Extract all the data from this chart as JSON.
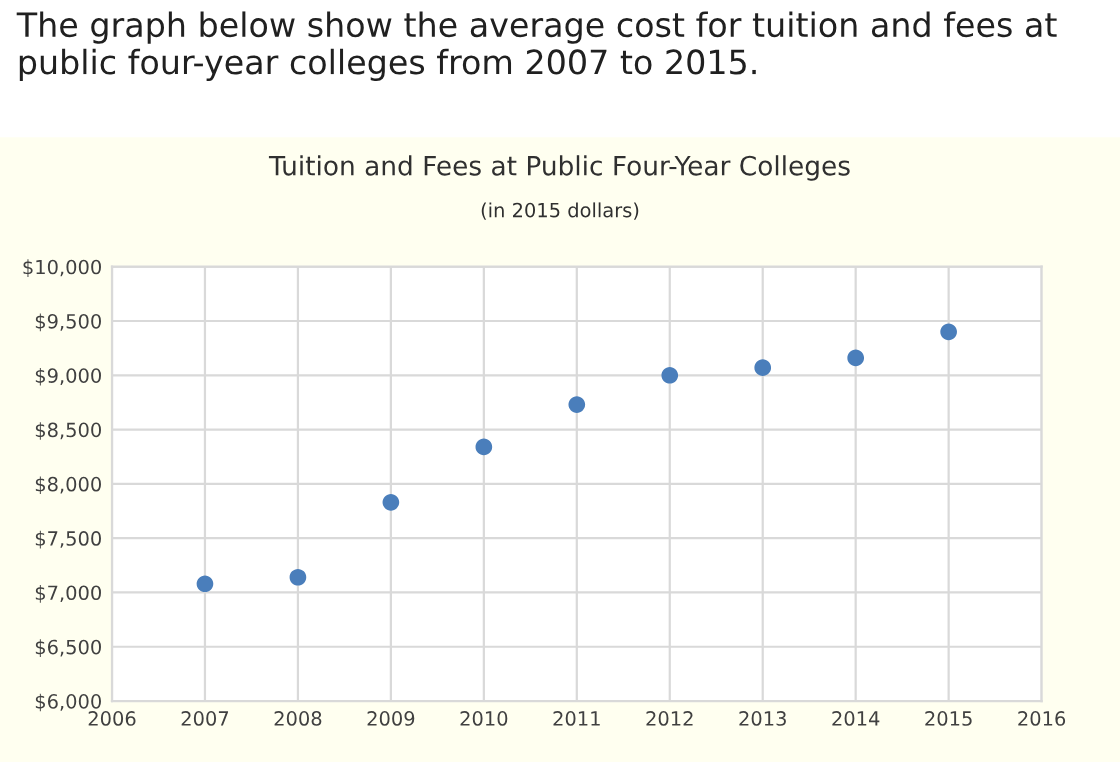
{
  "chart_data": {
    "type": "scatter",
    "title": "Tuition and Fees at Public Four-Year Colleges",
    "subtitle": "(in 2015 dollars)",
    "annotations": [
      "The graph below show the average cost for tuition and fees at public four-year colleges from 2007 to 2015."
    ],
    "x": [
      2007,
      2008,
      2009,
      2010,
      2011,
      2012,
      2013,
      2014,
      2015
    ],
    "series": [
      {
        "color": "#4a7ebb",
        "values": [
          7080,
          7140,
          7830,
          8340,
          8730,
          9000,
          9070,
          9160,
          9400
        ]
      }
    ],
    "xlim": [
      2006,
      2016
    ],
    "xticks": [
      2006,
      2007,
      2008,
      2009,
      2010,
      2011,
      2012,
      2013,
      2014,
      2015,
      2016
    ],
    "ylim": [
      6000,
      10000
    ],
    "yticks": [
      {
        "value": 6000,
        "label": "$6,000"
      },
      {
        "value": 6500,
        "label": "$6,500"
      },
      {
        "value": 7000,
        "label": "$7,000"
      },
      {
        "value": 7500,
        "label": "$7,500"
      },
      {
        "value": 8000,
        "label": "$8,000"
      },
      {
        "value": 8500,
        "label": "$8,500"
      },
      {
        "value": 9000,
        "label": "$9,000"
      },
      {
        "value": 9500,
        "label": "$9,500"
      },
      {
        "value": 10000,
        "label": "$10,000"
      }
    ],
    "grid": true,
    "marker": "circle"
  }
}
